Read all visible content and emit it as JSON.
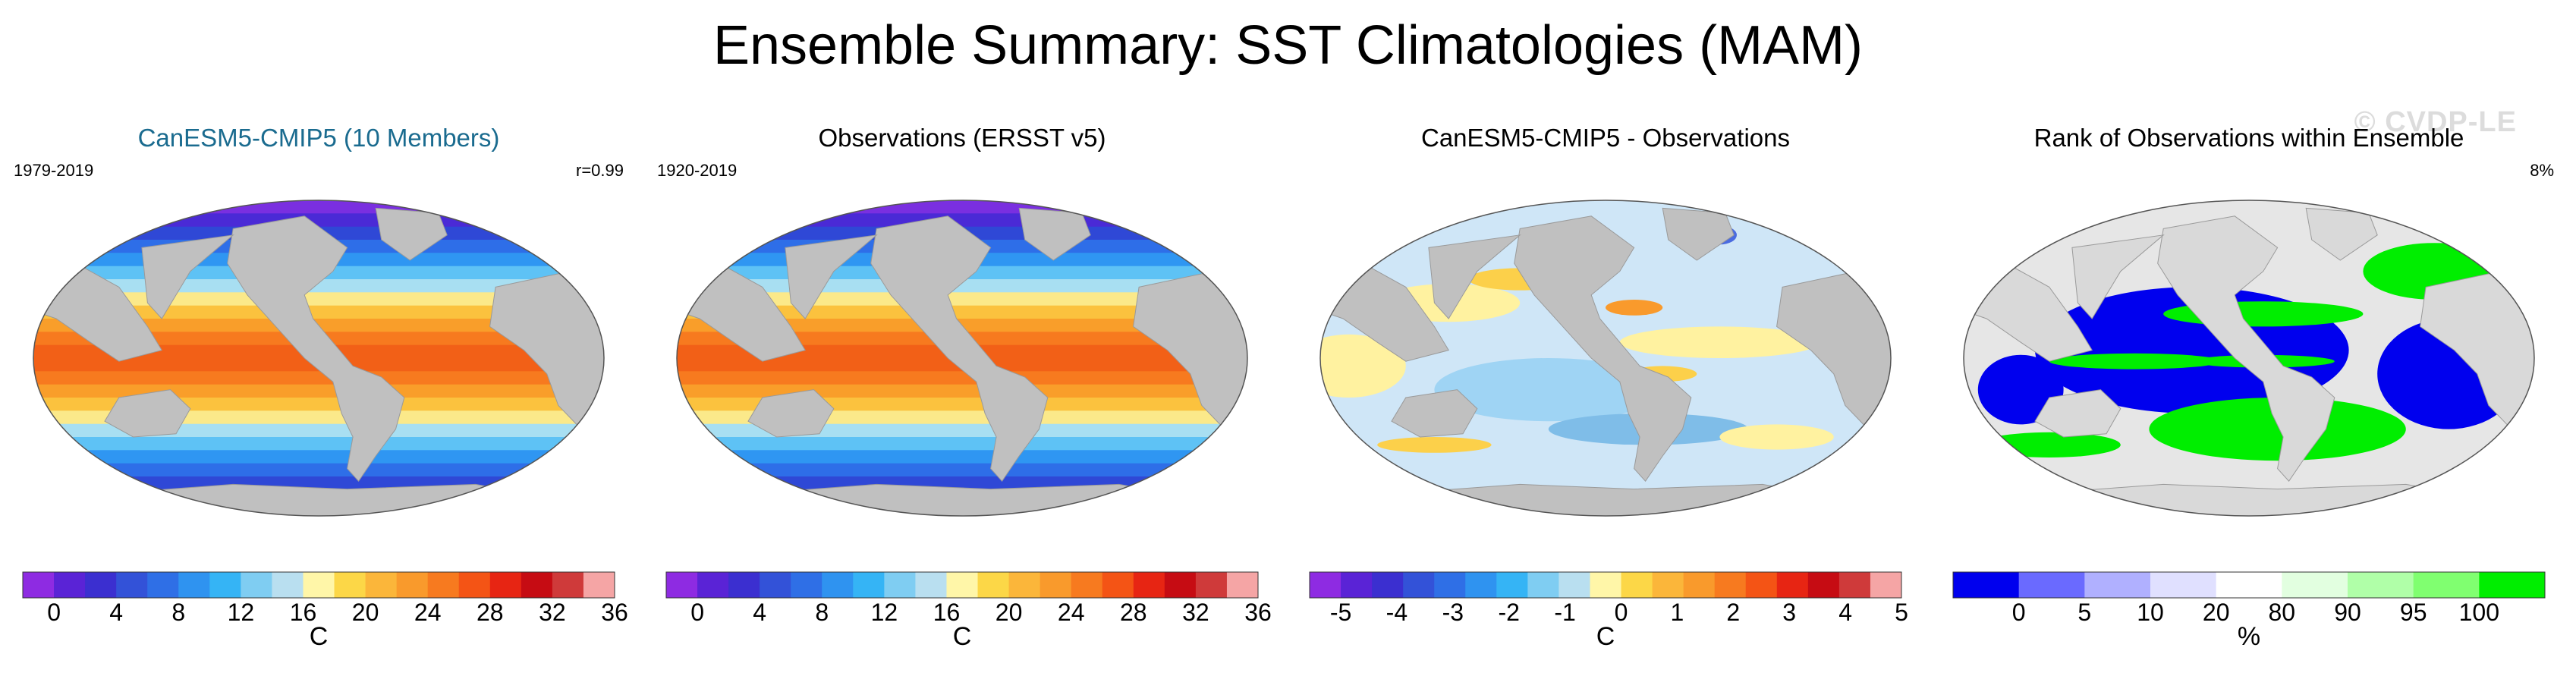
{
  "title": "Ensemble Summary: SST Climatologies (MAM)",
  "watermark": "© CVDP-LE",
  "panels": [
    {
      "title": "CanESM5-CMIP5 (10 Members)",
      "title_color": "#1a6b8f",
      "left_label": "1979-2019",
      "right_label": "r=0.99",
      "map_type": "sst",
      "colorbar": {
        "colors": [
          "#8e2be2",
          "#5a23d6",
          "#3b2fd0",
          "#3352d8",
          "#2f6fe6",
          "#2f93f0",
          "#35b4f5",
          "#7fcdf2",
          "#b9dff0",
          "#fff6a8",
          "#fcd747",
          "#fbb63a",
          "#f99a2c",
          "#f77a1f",
          "#f45415",
          "#e72513",
          "#c60c13",
          "#cf3a3a",
          "#f5a5a5"
        ],
        "ticks": [
          "0",
          "4",
          "8",
          "12",
          "16",
          "20",
          "24",
          "28",
          "32",
          "36"
        ],
        "tick_positions": [
          1,
          3,
          5,
          7,
          9,
          11,
          13,
          15,
          17,
          19
        ],
        "unit": "C"
      }
    },
    {
      "title": "Observations (ERSST v5)",
      "title_color": "#000000",
      "left_label": "1920-2019",
      "right_label": "",
      "map_type": "sst",
      "colorbar": {
        "colors": [
          "#8e2be2",
          "#5a23d6",
          "#3b2fd0",
          "#3352d8",
          "#2f6fe6",
          "#2f93f0",
          "#35b4f5",
          "#7fcdf2",
          "#b9dff0",
          "#fff6a8",
          "#fcd747",
          "#fbb63a",
          "#f99a2c",
          "#f77a1f",
          "#f45415",
          "#e72513",
          "#c60c13",
          "#cf3a3a",
          "#f5a5a5"
        ],
        "ticks": [
          "0",
          "4",
          "8",
          "12",
          "16",
          "20",
          "24",
          "28",
          "32",
          "36"
        ],
        "tick_positions": [
          1,
          3,
          5,
          7,
          9,
          11,
          13,
          15,
          17,
          19
        ],
        "unit": "C"
      }
    },
    {
      "title": "CanESM5-CMIP5 - Observations",
      "title_color": "#000000",
      "left_label": "",
      "right_label": "",
      "map_type": "diff",
      "colorbar": {
        "colors": [
          "#8e2be2",
          "#5a23d6",
          "#3b2fd0",
          "#3352d8",
          "#2f6fe6",
          "#2f93f0",
          "#35b4f5",
          "#7fcdf2",
          "#b9dff0",
          "#fff6a8",
          "#fcd747",
          "#fbb63a",
          "#f99a2c",
          "#f77a1f",
          "#f45415",
          "#e72513",
          "#c60c13",
          "#cf3a3a",
          "#f5a5a5"
        ],
        "ticks": [
          "-5",
          "-4",
          "-3",
          "-2",
          "-1",
          "0",
          "1",
          "2",
          "3",
          "4",
          "5"
        ],
        "tick_positions": [
          1,
          2.8,
          4.6,
          6.4,
          8.2,
          10,
          11.8,
          13.6,
          15.4,
          17.2,
          19
        ],
        "unit": "C"
      }
    },
    {
      "title": "Rank of Observations within Ensemble",
      "title_color": "#000000",
      "left_label": "",
      "right_label": "8%",
      "map_type": "rank",
      "colorbar": {
        "colors": [
          "#0000ee",
          "#6a6aff",
          "#b0b0ff",
          "#e0e0ff",
          "#ffffff",
          "#e2ffe0",
          "#b0ffa8",
          "#80ff70",
          "#00ee00"
        ],
        "ticks": [
          "0",
          "5",
          "10",
          "20",
          "80",
          "90",
          "95",
          "100"
        ],
        "tick_positions": [
          1,
          2,
          3,
          4,
          5,
          6,
          7,
          8
        ],
        "unit": "%"
      }
    }
  ]
}
